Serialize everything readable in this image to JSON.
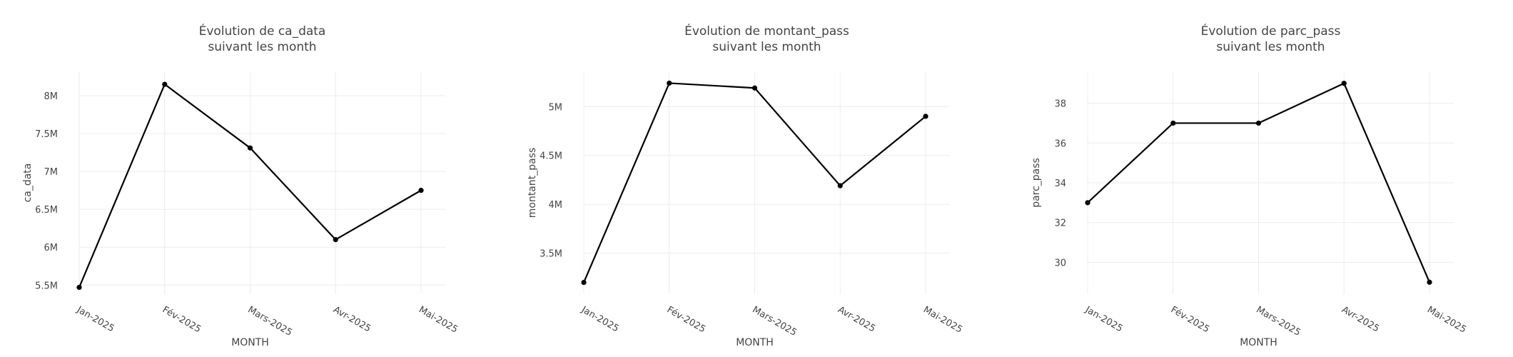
{
  "chart_data": [
    {
      "type": "line",
      "title_lines": [
        "Évolution de ca_data",
        "suivant les month"
      ],
      "xlabel": "MONTH",
      "ylabel": "ca_data",
      "categories": [
        "Jan-2025",
        "Fév-2025",
        "Mars-2025",
        "Avr-2025",
        "Mai-2025"
      ],
      "values": [
        5470000,
        8150000,
        7310000,
        6100000,
        6750000
      ],
      "ylim": [
        5380000,
        8320000
      ],
      "yticks": [
        5500000,
        6000000,
        6500000,
        7000000,
        7500000,
        8000000
      ],
      "ytick_labels": [
        "5.5M",
        "6M",
        "6.5M",
        "7M",
        "7.5M",
        "8M"
      ],
      "grid": true,
      "legend": "none",
      "line_color": "#000000"
    },
    {
      "type": "line",
      "title_lines": [
        "Évolution de montant_pass",
        "suivant les month"
      ],
      "xlabel": "MONTH",
      "ylabel": "montant_pass",
      "categories": [
        "Jan-2025",
        "Fév-2025",
        "Mars-2025",
        "Avr-2025",
        "Mai-2025"
      ],
      "values": [
        3200000,
        5240000,
        5190000,
        4190000,
        4900000
      ],
      "ylim": [
        3080000,
        5360000
      ],
      "yticks": [
        3500000,
        4000000,
        4500000,
        5000000
      ],
      "ytick_labels": [
        "3.5M",
        "4M",
        "4.5M",
        "5M"
      ],
      "grid": true,
      "legend": "none",
      "line_color": "#000000"
    },
    {
      "type": "line",
      "title_lines": [
        "Évolution de parc_pass",
        "suivant les month"
      ],
      "xlabel": "MONTH",
      "ylabel": "parc_pass",
      "categories": [
        "Jan-2025",
        "Fév-2025",
        "Mars-2025",
        "Avr-2025",
        "Mai-2025"
      ],
      "values": [
        33,
        37,
        37,
        39,
        29
      ],
      "ylim": [
        28.4,
        39.6
      ],
      "yticks": [
        30,
        32,
        34,
        36,
        38
      ],
      "ytick_labels": [
        "30",
        "32",
        "34",
        "36",
        "38"
      ],
      "grid": true,
      "legend": "none",
      "line_color": "#000000"
    }
  ]
}
